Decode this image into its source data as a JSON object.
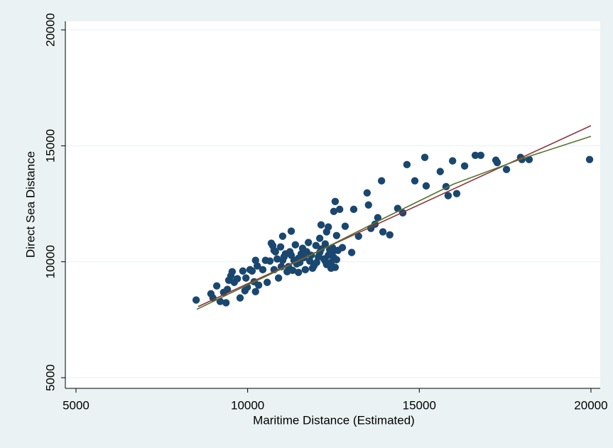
{
  "chart_data": {
    "type": "scatter",
    "xlabel": "Maritime Distance (Estimated)",
    "ylabel": "Direct Sea Distance",
    "xlim": [
      4690,
      20270
    ],
    "ylim": [
      4540,
      20370
    ],
    "xticks": [
      5000,
      10000,
      15000,
      20000
    ],
    "yticks": [
      5000,
      10000,
      15000,
      20000
    ],
    "grid": true,
    "color": "#1a476f",
    "x": [
      8500,
      8930,
      8990,
      9100,
      9200,
      9300,
      9370,
      9410,
      9450,
      9510,
      9550,
      9610,
      9700,
      9780,
      9860,
      9920,
      9950,
      9990,
      10070,
      10130,
      10190,
      10230,
      10230,
      10280,
      10320,
      10440,
      10520,
      10570,
      10650,
      10690,
      10730,
      10770,
      10770,
      10810,
      10860,
      10900,
      10960,
      10980,
      11020,
      11020,
      11060,
      11100,
      11150,
      11190,
      11230,
      11270,
      11270,
      11310,
      11350,
      11390,
      11430,
      11480,
      11480,
      11520,
      11560,
      11600,
      11640,
      11680,
      11720,
      11770,
      11810,
      11850,
      11890,
      11930,
      11990,
      12010,
      12060,
      12100,
      12100,
      12140,
      12140,
      12220,
      12260,
      12260,
      12300,
      12300,
      12350,
      12350,
      12390,
      12430,
      12430,
      12470,
      12470,
      12510,
      12510,
      12550,
      12550,
      12590,
      12590,
      12630,
      12680,
      12760,
      12840,
      13030,
      13090,
      13230,
      13480,
      13520,
      13590,
      13710,
      13790,
      13900,
      13940,
      14140,
      14370,
      14520,
      14640,
      14870,
      15160,
      15200,
      15610,
      15780,
      15840,
      15970,
      16090,
      16320,
      16630,
      16790,
      17230,
      17270,
      17540,
      17950,
      17990,
      18200,
      19960
    ],
    "y": [
      8350,
      8620,
      8440,
      8960,
      8290,
      8680,
      8230,
      8810,
      9200,
      9390,
      9570,
      9110,
      9270,
      8440,
      9600,
      8750,
      9300,
      8900,
      9660,
      9600,
      9140,
      10060,
      8710,
      9820,
      8990,
      9660,
      10060,
      9110,
      10030,
      10800,
      10700,
      10490,
      9660,
      10430,
      10120,
      9300,
      10640,
      9790,
      10060,
      11100,
      10210,
      10340,
      9570,
      9790,
      10430,
      11320,
      10280,
      9630,
      10060,
      10730,
      9910,
      9540,
      10150,
      9970,
      10340,
      10580,
      10180,
      9660,
      10430,
      10830,
      10030,
      10280,
      9720,
      9820,
      10700,
      9970,
      10210,
      10400,
      11010,
      10550,
      11590,
      10120,
      10770,
      10030,
      9880,
      11290,
      10280,
      11500,
      10520,
      9720,
      9970,
      10400,
      10610,
      10180,
      12170,
      9760,
      12600,
      10090,
      11130,
      10490,
      12260,
      10610,
      11530,
      10400,
      12260,
      11100,
      12970,
      12450,
      11440,
      11620,
      11900,
      13490,
      11290,
      11160,
      12300,
      12110,
      14190,
      13490,
      14500,
      13270,
      13890,
      13240,
      12850,
      14350,
      12940,
      14130,
      14590,
      14590,
      14380,
      14280,
      13980,
      14500,
      14410,
      14410,
      14410
    ],
    "lines": [
      {
        "color": "#90353b",
        "x": [
          8560,
          20000
        ],
        "y": [
          8070,
          15870
        ]
      },
      {
        "color": "#55752f",
        "x": [
          8520,
          10000,
          12000,
          14000,
          16000,
          18000,
          20000
        ],
        "y": [
          7950,
          9000,
          10400,
          11900,
          13350,
          14450,
          15410
        ]
      }
    ]
  }
}
